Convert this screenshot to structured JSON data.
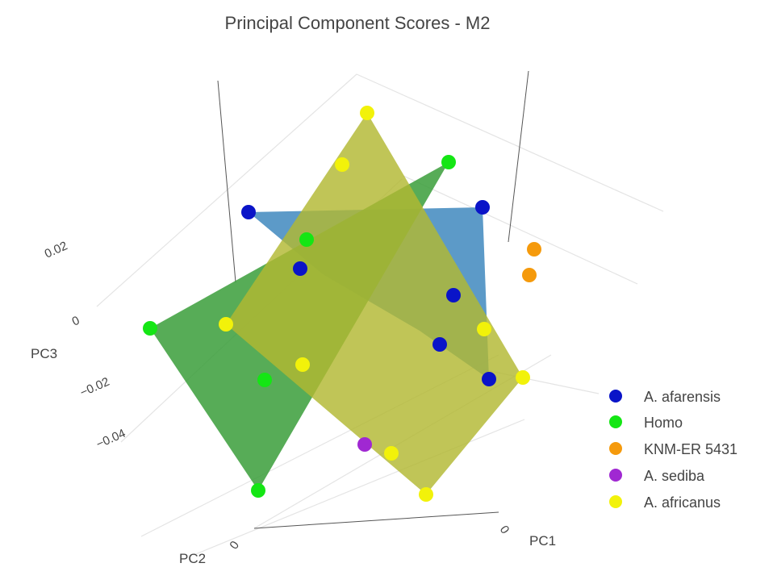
{
  "chart_data": {
    "type": "scatter",
    "projection": "3d",
    "title": "Principal Component Scores - M2",
    "axes": {
      "x": {
        "label": "PC1",
        "ticks": [
          "0"
        ]
      },
      "y": {
        "label": "PC2",
        "ticks": [
          "0"
        ]
      },
      "z": {
        "label": "PC3",
        "ticks": [
          "0.02",
          "0",
          "−0.02",
          "−0.04"
        ]
      }
    },
    "legend_position": "right",
    "series": [
      {
        "name": "A. afarensis",
        "color": "#0a14c8",
        "hull_color": "#4a8fc2",
        "hull_opacity": 0.9
      },
      {
        "name": "Homo",
        "color": "#14e614",
        "hull_color": "#3a9e3a",
        "hull_opacity": 0.85
      },
      {
        "name": "KNM-ER 5431",
        "color": "#f59a0c"
      },
      {
        "name": "A. sediba",
        "color": "#a028d2"
      },
      {
        "name": "A. africanus",
        "color": "#f2f20a",
        "hull_color": "#b2b832",
        "hull_opacity": 0.82
      }
    ]
  }
}
